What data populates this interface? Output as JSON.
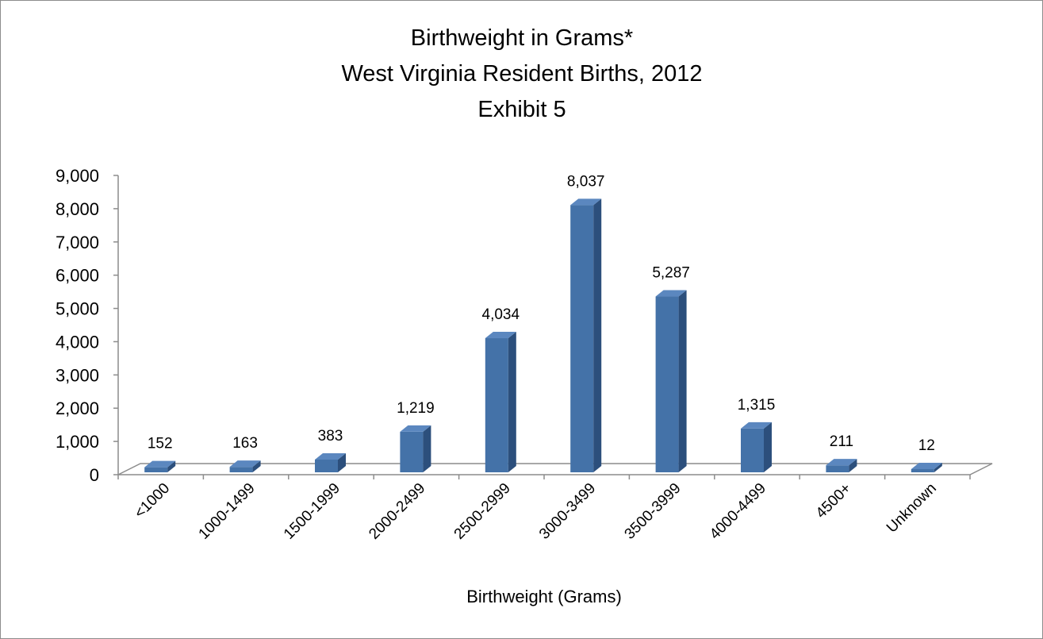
{
  "chart_data": {
    "type": "bar",
    "title_lines": [
      "Birthweight in Grams*",
      "West Virginia Resident Births, 2012",
      "Exhibit 5"
    ],
    "xlabel": "Birthweight (Grams)",
    "ylabel": "",
    "categories": [
      "<1000",
      "1000-1499",
      "1500-1999",
      "2000-2499",
      "2500-2999",
      "3000-3499",
      "3500-3999",
      "4000-4499",
      "4500+",
      "Unknown"
    ],
    "values": [
      152,
      163,
      383,
      1219,
      4034,
      8037,
      5287,
      1315,
      211,
      12
    ],
    "data_labels": [
      "152",
      "163",
      "383",
      "1,219",
      "4,034",
      "8,037",
      "5,287",
      "1,315",
      "211",
      "12"
    ],
    "ylim": [
      0,
      9000
    ],
    "yticks": [
      0,
      1000,
      2000,
      3000,
      4000,
      5000,
      6000,
      7000,
      8000,
      9000
    ],
    "ytick_labels": [
      "0",
      "1,000",
      "2,000",
      "3,000",
      "4,000",
      "5,000",
      "6,000",
      "7,000",
      "8,000",
      "9,000"
    ],
    "grid": false,
    "legend": "none",
    "colors": {
      "bar_front": "#4472a8",
      "bar_side": "#2c4f7c",
      "bar_top": "#5b87bf",
      "floor": "#8c8c8c"
    }
  }
}
